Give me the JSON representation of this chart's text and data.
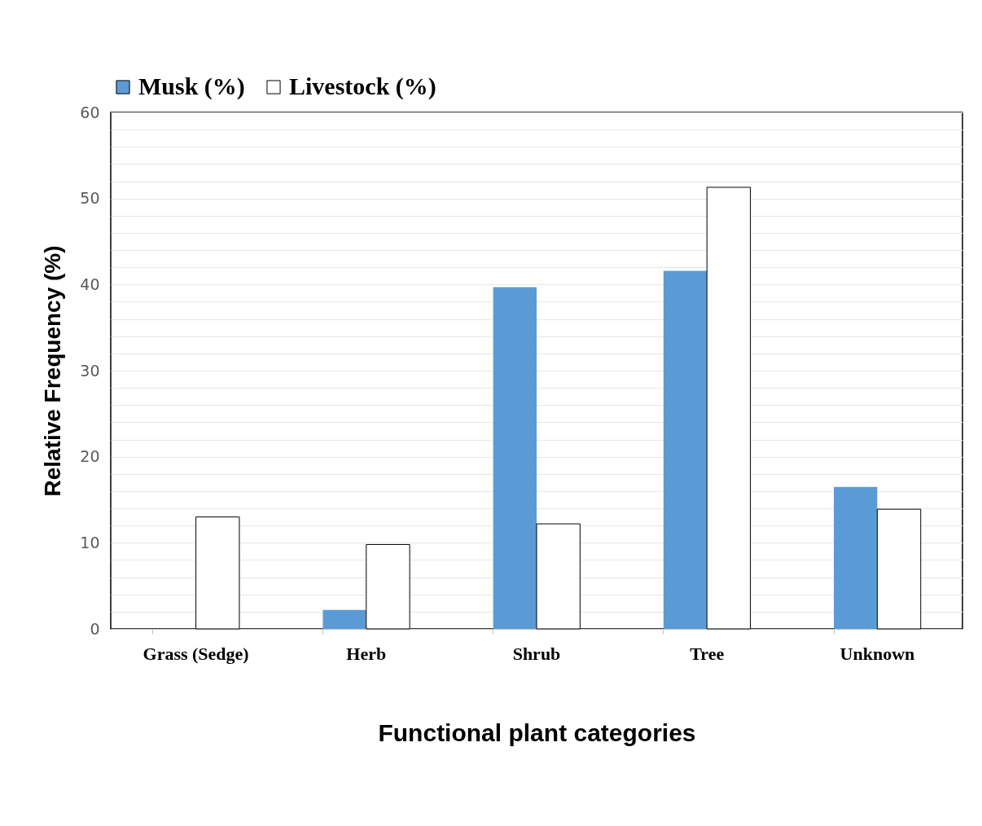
{
  "chart_data": {
    "type": "bar",
    "xlabel": "Functional plant categories",
    "ylabel": "Relative Frequency  (%)",
    "categories": [
      "Grass (Sedge)",
      "Herb",
      "Shrub",
      "Tree",
      "Unknown"
    ],
    "series": [
      {
        "name": "Musk (%)",
        "color": "#5b9bd5",
        "values": [
          0,
          2.2,
          39.7,
          41.6,
          16.5
        ]
      },
      {
        "name": "Livestock (%)",
        "color": "#ffffff",
        "values": [
          13.0,
          9.8,
          12.2,
          51.3,
          13.9
        ]
      }
    ],
    "ylim": [
      0,
      60
    ],
    "yticks": [
      0,
      {
        "value": 2,
        "label": null
      },
      {
        "value": 4,
        "label": null
      },
      {
        "value": 6,
        "label": null
      },
      {
        "value": 8,
        "label": null
      },
      10,
      {
        "value": 12,
        "label": null
      },
      {
        "value": 14,
        "label": null
      },
      {
        "value": 16,
        "label": null
      },
      {
        "value": 18,
        "label": null
      },
      20,
      {
        "value": 22,
        "label": null
      },
      {
        "value": 24,
        "label": null
      },
      {
        "value": 26,
        "label": null
      },
      {
        "value": 28,
        "label": null
      },
      30,
      {
        "value": 32,
        "label": null
      },
      {
        "value": 34,
        "label": null
      },
      {
        "value": 36,
        "label": null
      },
      {
        "value": 38,
        "label": null
      },
      40,
      {
        "value": 42,
        "label": null
      },
      {
        "value": 44,
        "label": null
      },
      {
        "value": 46,
        "label": null
      },
      {
        "value": 48,
        "label": null
      },
      50,
      {
        "value": 52,
        "label": null
      },
      {
        "value": 54,
        "label": null
      },
      {
        "value": 56,
        "label": null
      },
      {
        "value": 58,
        "label": null
      },
      60
    ],
    "grid": "y",
    "legend": "top"
  }
}
